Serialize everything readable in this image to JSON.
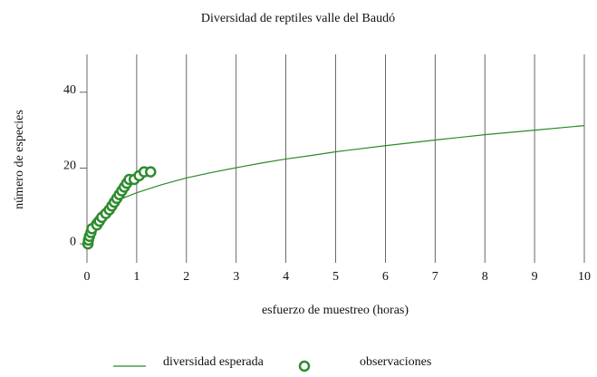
{
  "chart_data": {
    "type": "line",
    "title": "Diversidad de reptiles valle del Baudó",
    "xlabel": "esfuerzo de muestreo (horas)",
    "ylabel": "número de especies",
    "xlim": [
      0,
      10
    ],
    "ylim": [
      -5,
      50
    ],
    "xticks": [
      0,
      1,
      2,
      3,
      4,
      5,
      6,
      7,
      8,
      9,
      10
    ],
    "yticks": [
      0,
      20,
      40
    ],
    "grid": "x",
    "legend": "bottom",
    "series": [
      {
        "name": "diversidad esperada",
        "type": "line",
        "color": "#2a8a2a",
        "x": [
          0,
          0.1,
          0.25,
          0.5,
          0.75,
          1,
          1.5,
          2,
          2.5,
          3,
          3.5,
          4,
          4.5,
          5,
          6,
          7,
          8,
          9,
          10
        ],
        "values": [
          0,
          5.8,
          8.2,
          10.5,
          12.2,
          13.5,
          15.6,
          17.4,
          18.8,
          20.1,
          21.3,
          22.4,
          23.3,
          24.3,
          25.9,
          27.4,
          28.8,
          30.0,
          31.2
        ]
      },
      {
        "name": "observaciones",
        "type": "scatter",
        "color": "#2e8b2e",
        "x": [
          0.02,
          0.03,
          0.05,
          0.08,
          0.1,
          0.2,
          0.25,
          0.3,
          0.38,
          0.45,
          0.5,
          0.55,
          0.6,
          0.65,
          0.7,
          0.75,
          0.8,
          0.85,
          0.95,
          1.05,
          1.15,
          1.28
        ],
        "values": [
          0,
          1,
          2,
          3,
          4,
          5,
          6,
          7,
          8,
          9,
          10,
          11,
          12,
          13,
          14,
          15,
          16,
          17,
          17,
          18,
          19,
          19
        ]
      }
    ]
  }
}
